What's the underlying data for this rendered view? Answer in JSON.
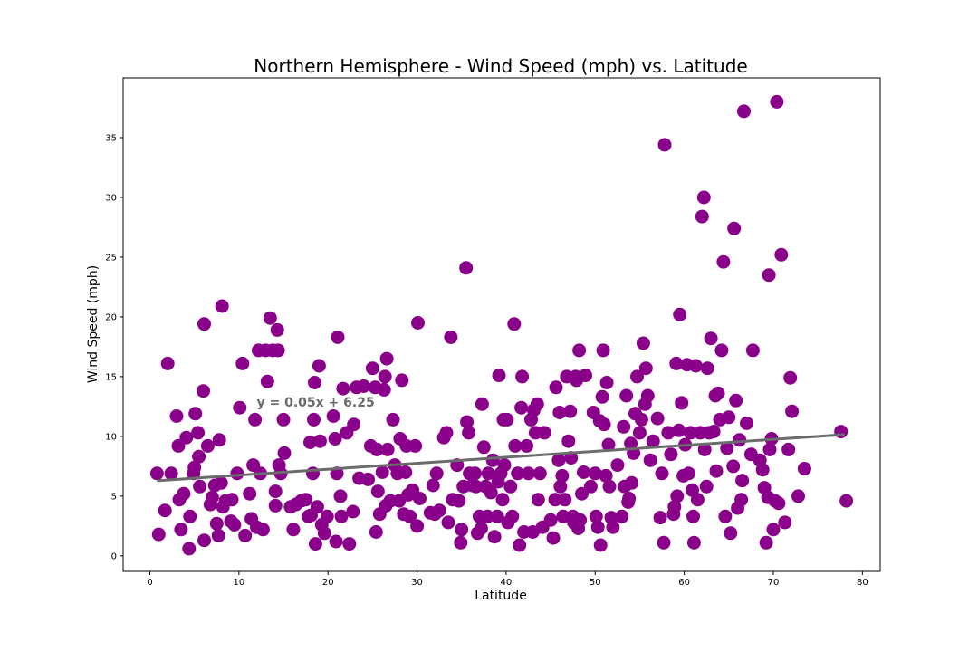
{
  "chart_data": {
    "type": "scatter",
    "title": "Northern Hemisphere - Wind Speed (mph) vs. Latitude",
    "xlabel": "Latitude",
    "ylabel": "Wind Speed (mph)",
    "xlim": [
      -3,
      82
    ],
    "ylim": [
      -1.3,
      40
    ],
    "xticks": [
      0,
      10,
      20,
      30,
      40,
      50,
      60,
      70,
      80
    ],
    "yticks": [
      0,
      5,
      10,
      15,
      20,
      25,
      30,
      35
    ],
    "grid": false,
    "marker_color": "#8b008b",
    "line_color": "#6b6b6b",
    "annotation": {
      "text": "y = 0.05x + 6.25",
      "x": 12,
      "y": 12.5
    },
    "regression": {
      "slope": 0.05,
      "intercept": 6.25,
      "x_range": [
        0.8,
        78
      ]
    },
    "points": [
      [
        0.8,
        6.9
      ],
      [
        1,
        1.8
      ],
      [
        1.7,
        3.8
      ],
      [
        2,
        16.1
      ],
      [
        2.4,
        6.9
      ],
      [
        3,
        11.7
      ],
      [
        3.2,
        9.2
      ],
      [
        3.3,
        4.7
      ],
      [
        3.5,
        2.2
      ],
      [
        3.8,
        5.2
      ],
      [
        4.1,
        9.9
      ],
      [
        4.4,
        0.6
      ],
      [
        4.5,
        3.3
      ],
      [
        4.9,
        6.9
      ],
      [
        5,
        7.4
      ],
      [
        5.1,
        11.9
      ],
      [
        5.4,
        10.3
      ],
      [
        5.5,
        8.3
      ],
      [
        5.6,
        5.8
      ],
      [
        6,
        13.8
      ],
      [
        6.1,
        19.4
      ],
      [
        6.1,
        1.3
      ],
      [
        6.5,
        9.2
      ],
      [
        6.8,
        4.3
      ],
      [
        7,
        4.9
      ],
      [
        7.3,
        5.9
      ],
      [
        7.5,
        2.7
      ],
      [
        7.7,
        1.7
      ],
      [
        7.8,
        9.7
      ],
      [
        8,
        6.1
      ],
      [
        8.1,
        20.9
      ],
      [
        8.2,
        4.1
      ],
      [
        8.5,
        4.6
      ],
      [
        9.1,
        2.9
      ],
      [
        9.2,
        4.7
      ],
      [
        9.5,
        2.6
      ],
      [
        9.8,
        6.9
      ],
      [
        10.1,
        12.4
      ],
      [
        10.4,
        16.1
      ],
      [
        10.7,
        1.7
      ],
      [
        11.2,
        5.2
      ],
      [
        11.4,
        3.1
      ],
      [
        11.6,
        7.6
      ],
      [
        11.8,
        11.4
      ],
      [
        12,
        2.4
      ],
      [
        12.2,
        17.2
      ],
      [
        12.4,
        6.9
      ],
      [
        12.7,
        2.2
      ],
      [
        13,
        17.2
      ],
      [
        13.2,
        14.6
      ],
      [
        13.5,
        19.9
      ],
      [
        13.8,
        17.2
      ],
      [
        14.1,
        5.4
      ],
      [
        14.1,
        4.2
      ],
      [
        14.3,
        18.9
      ],
      [
        14.4,
        17.2
      ],
      [
        14.5,
        7.6
      ],
      [
        14.7,
        6.9
      ],
      [
        15,
        11.4
      ],
      [
        15.1,
        8.6
      ],
      [
        15.8,
        4.1
      ],
      [
        16.1,
        2.2
      ],
      [
        16.4,
        4.3
      ],
      [
        17,
        4.6
      ],
      [
        17.5,
        4.7
      ],
      [
        17.8,
        3.3
      ],
      [
        18,
        9.5
      ],
      [
        18.1,
        3.4
      ],
      [
        18.3,
        6.9
      ],
      [
        18.4,
        11.4
      ],
      [
        18.5,
        14.5
      ],
      [
        18.6,
        1
      ],
      [
        18.8,
        4.1
      ],
      [
        19,
        15.9
      ],
      [
        19.1,
        9.6
      ],
      [
        19.3,
        2.6
      ],
      [
        19.6,
        1.9
      ],
      [
        19.9,
        3.3
      ],
      [
        20.6,
        11.7
      ],
      [
        20.8,
        9.8
      ],
      [
        20.9,
        1.2
      ],
      [
        21,
        6.9
      ],
      [
        21.1,
        18.3
      ],
      [
        21.4,
        5
      ],
      [
        21.5,
        3.3
      ],
      [
        21.7,
        14
      ],
      [
        22.1,
        10.3
      ],
      [
        22.4,
        1
      ],
      [
        22.8,
        3.7
      ],
      [
        22.9,
        11
      ],
      [
        23.2,
        14.1
      ],
      [
        23.5,
        6.5
      ],
      [
        24,
        14.2
      ],
      [
        24.5,
        6.4
      ],
      [
        24.8,
        9.2
      ],
      [
        25,
        15.7
      ],
      [
        25.3,
        14.1
      ],
      [
        25.4,
        2
      ],
      [
        25.5,
        8.9
      ],
      [
        25.6,
        5.4
      ],
      [
        25.8,
        3.5
      ],
      [
        26.1,
        7
      ],
      [
        26.3,
        13.9
      ],
      [
        26.4,
        15
      ],
      [
        26.5,
        4.2
      ],
      [
        26.6,
        16.5
      ],
      [
        26.7,
        8.9
      ],
      [
        27,
        4.6
      ],
      [
        27.3,
        11.4
      ],
      [
        27.5,
        7.6
      ],
      [
        27.8,
        6.9
      ],
      [
        28,
        4.6
      ],
      [
        28.1,
        9.8
      ],
      [
        28.3,
        14.7
      ],
      [
        28.5,
        3.5
      ],
      [
        28.7,
        7
      ],
      [
        28.8,
        9.2
      ],
      [
        29,
        5.1
      ],
      [
        29.2,
        3.3
      ],
      [
        29.5,
        5.5
      ],
      [
        29.8,
        9.2
      ],
      [
        30,
        2.5
      ],
      [
        30.1,
        19.5
      ],
      [
        30.3,
        4.8
      ],
      [
        31.5,
        3.6
      ],
      [
        31.8,
        5.9
      ],
      [
        32,
        3.5
      ],
      [
        32.2,
        6.9
      ],
      [
        32.5,
        3.8
      ],
      [
        33,
        9.9
      ],
      [
        33.3,
        10.3
      ],
      [
        33.5,
        2.8
      ],
      [
        33.8,
        18.3
      ],
      [
        34,
        4.7
      ],
      [
        34.5,
        7.6
      ],
      [
        34.7,
        4.6
      ],
      [
        34.9,
        1.1
      ],
      [
        35,
        2.2
      ],
      [
        35.2,
        5.8
      ],
      [
        35.5,
        24.1
      ],
      [
        35.6,
        11.2
      ],
      [
        35.8,
        10.3
      ],
      [
        35.9,
        6.9
      ],
      [
        36.2,
        5.9
      ],
      [
        36.5,
        6.9
      ],
      [
        36.6,
        5.8
      ],
      [
        36.8,
        1.9
      ],
      [
        37,
        3.3
      ],
      [
        37.2,
        2.3
      ],
      [
        37.3,
        12.7
      ],
      [
        37.5,
        9.1
      ],
      [
        37.7,
        5.8
      ],
      [
        37.9,
        3.3
      ],
      [
        38,
        6.9
      ],
      [
        38.3,
        5.3
      ],
      [
        38.5,
        8
      ],
      [
        38.7,
        1.6
      ],
      [
        39,
        3.3
      ],
      [
        39.1,
        6.2
      ],
      [
        39.2,
        15.1
      ],
      [
        39.4,
        6.9
      ],
      [
        39.6,
        4.7
      ],
      [
        39.7,
        11.4
      ],
      [
        39.8,
        7.6
      ],
      [
        40.1,
        11.4
      ],
      [
        40.2,
        2.8
      ],
      [
        40.5,
        5.8
      ],
      [
        40.7,
        3.3
      ],
      [
        40.9,
        19.4
      ],
      [
        41,
        9.2
      ],
      [
        41.3,
        6.9
      ],
      [
        41.5,
        0.9
      ],
      [
        41.7,
        12.4
      ],
      [
        41.8,
        15
      ],
      [
        42,
        2
      ],
      [
        42.3,
        9.2
      ],
      [
        42.5,
        6.9
      ],
      [
        42.8,
        11.4
      ],
      [
        43,
        2
      ],
      [
        43.1,
        12.2
      ],
      [
        43.3,
        10.3
      ],
      [
        43.5,
        12.7
      ],
      [
        43.6,
        4.7
      ],
      [
        43.8,
        6.9
      ],
      [
        44.1,
        2.4
      ],
      [
        44.3,
        10.3
      ],
      [
        45,
        3
      ],
      [
        45.3,
        1.5
      ],
      [
        45.5,
        4.7
      ],
      [
        45.6,
        14.1
      ],
      [
        45.9,
        8
      ],
      [
        46,
        12
      ],
      [
        46.1,
        5.8
      ],
      [
        46.3,
        6.7
      ],
      [
        46.4,
        3.3
      ],
      [
        46.6,
        4.7
      ],
      [
        46.8,
        15
      ],
      [
        47,
        9.6
      ],
      [
        47.2,
        12.1
      ],
      [
        47.3,
        8.2
      ],
      [
        47.5,
        3.3
      ],
      [
        47.6,
        2.8
      ],
      [
        47.8,
        15
      ],
      [
        47.9,
        14.7
      ],
      [
        48.1,
        2.3
      ],
      [
        48.2,
        17.2
      ],
      [
        48.3,
        3
      ],
      [
        48.5,
        5.2
      ],
      [
        48.7,
        7
      ],
      [
        48.9,
        15.1
      ],
      [
        49.5,
        5.8
      ],
      [
        49.8,
        12
      ],
      [
        50,
        6.9
      ],
      [
        50.1,
        3.3
      ],
      [
        50.3,
        2.4
      ],
      [
        50.5,
        11.3
      ],
      [
        50.6,
        0.9
      ],
      [
        50.8,
        13.3
      ],
      [
        50.9,
        17.2
      ],
      [
        51,
        11
      ],
      [
        51.2,
        6.7
      ],
      [
        51.3,
        14.5
      ],
      [
        51.5,
        9.3
      ],
      [
        51.6,
        5.8
      ],
      [
        51.8,
        3.2
      ],
      [
        52,
        2.4
      ],
      [
        52.5,
        7.6
      ],
      [
        53,
        3.3
      ],
      [
        53.2,
        10.8
      ],
      [
        53.3,
        5.8
      ],
      [
        53.5,
        13.4
      ],
      [
        53.7,
        4.5
      ],
      [
        53.8,
        4.8
      ],
      [
        54,
        9.4
      ],
      [
        54.1,
        6.1
      ],
      [
        54.3,
        8.6
      ],
      [
        54.5,
        11.9
      ],
      [
        54.7,
        15
      ],
      [
        55,
        10.3
      ],
      [
        55.2,
        11.4
      ],
      [
        55.4,
        17.8
      ],
      [
        55.6,
        12.7
      ],
      [
        55.7,
        15.7
      ],
      [
        55.9,
        13.4
      ],
      [
        56.2,
        8
      ],
      [
        56.5,
        9.6
      ],
      [
        57,
        11.5
      ],
      [
        57.3,
        3.2
      ],
      [
        57.5,
        6.9
      ],
      [
        57.7,
        1.1
      ],
      [
        57.8,
        34.4
      ],
      [
        58.2,
        10.3
      ],
      [
        58.5,
        8.5
      ],
      [
        58.8,
        3.5
      ],
      [
        58.9,
        4.1
      ],
      [
        59.1,
        16.1
      ],
      [
        59.2,
        5
      ],
      [
        59.4,
        10.5
      ],
      [
        59.5,
        20.2
      ],
      [
        59.7,
        12.8
      ],
      [
        59.9,
        6.7
      ],
      [
        60.1,
        9.3
      ],
      [
        60.3,
        16
      ],
      [
        60.5,
        6.9
      ],
      [
        60.7,
        10.3
      ],
      [
        60.9,
        5.5
      ],
      [
        61,
        3.3
      ],
      [
        61.1,
        1.1
      ],
      [
        61.3,
        15.9
      ],
      [
        61.5,
        4.7
      ],
      [
        61.8,
        10.3
      ],
      [
        62,
        28.4
      ],
      [
        62.2,
        30
      ],
      [
        62.3,
        8.9
      ],
      [
        62.5,
        5.8
      ],
      [
        62.6,
        15.7
      ],
      [
        62.8,
        10.3
      ],
      [
        63,
        18.2
      ],
      [
        63.3,
        10.4
      ],
      [
        63.5,
        13.4
      ],
      [
        63.6,
        7.1
      ],
      [
        63.8,
        13.6
      ],
      [
        64,
        11.4
      ],
      [
        64.2,
        17.2
      ],
      [
        64.4,
        24.6
      ],
      [
        64.6,
        3.3
      ],
      [
        64.8,
        9
      ],
      [
        65,
        11.6
      ],
      [
        65.2,
        1.9
      ],
      [
        65.5,
        7.5
      ],
      [
        65.6,
        27.4
      ],
      [
        65.8,
        13
      ],
      [
        66,
        4
      ],
      [
        66.2,
        9.7
      ],
      [
        66.4,
        4.7
      ],
      [
        66.5,
        6.3
      ],
      [
        66.7,
        37.2
      ],
      [
        67,
        11.1
      ],
      [
        67.5,
        8.5
      ],
      [
        67.7,
        17.2
      ],
      [
        68.5,
        8
      ],
      [
        68.8,
        7.2
      ],
      [
        69,
        5.7
      ],
      [
        69.2,
        1.1
      ],
      [
        69.4,
        4.9
      ],
      [
        69.5,
        23.5
      ],
      [
        69.6,
        8.9
      ],
      [
        69.8,
        9.8
      ],
      [
        70,
        2.2
      ],
      [
        70.2,
        4.6
      ],
      [
        70.4,
        38
      ],
      [
        70.6,
        4.4
      ],
      [
        70.9,
        25.2
      ],
      [
        71.3,
        2.8
      ],
      [
        71.7,
        8.9
      ],
      [
        71.9,
        14.9
      ],
      [
        72.1,
        12.1
      ],
      [
        72.8,
        5
      ],
      [
        73.5,
        7.3
      ],
      [
        77.6,
        10.4
      ],
      [
        78.2,
        4.6
      ]
    ]
  }
}
